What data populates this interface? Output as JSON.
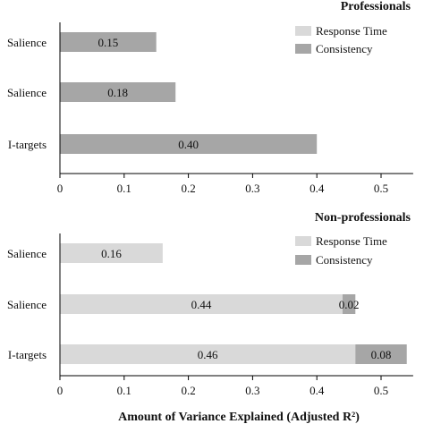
{
  "chart_data": [
    {
      "type": "bar",
      "orientation": "horizontal",
      "stacked": true,
      "title": "Professionals",
      "xlabel": "",
      "ylabel": "",
      "xlim": [
        0,
        0.55
      ],
      "x_ticks": [
        "0",
        "0.1",
        "0.2",
        "0.3",
        "0.4",
        "0.5"
      ],
      "categories": [
        "Salience",
        "Salience",
        "I-targets"
      ],
      "series": [
        {
          "name": "Response Time",
          "color": "#d9d9d9",
          "values": [
            0,
            0,
            0
          ],
          "labels": [
            "",
            "",
            ""
          ]
        },
        {
          "name": "Consistency",
          "color": "#a6a6a6",
          "values": [
            0.15,
            0.18,
            0.4
          ],
          "labels": [
            "0.15",
            "0.18",
            "0.40"
          ]
        }
      ],
      "legend": "top-right",
      "grid": false
    },
    {
      "type": "bar",
      "orientation": "horizontal",
      "stacked": true,
      "title": "Non-professionals",
      "xlabel": "Amount of Variance Explained (Adjusted R²)",
      "ylabel": "",
      "xlim": [
        0,
        0.55
      ],
      "x_ticks": [
        "0",
        "0.1",
        "0.2",
        "0.3",
        "0.4",
        "0.5"
      ],
      "categories": [
        "Salience",
        "Salience",
        "I-targets"
      ],
      "series": [
        {
          "name": "Response Time",
          "color": "#d9d9d9",
          "values": [
            0.16,
            0.44,
            0.46
          ],
          "labels": [
            "0.16",
            "0.44",
            "0.46"
          ]
        },
        {
          "name": "Consistency",
          "color": "#a6a6a6",
          "values": [
            0,
            0.02,
            0.08
          ],
          "labels": [
            "",
            "0.02",
            "0.08"
          ]
        }
      ],
      "legend": "top-right",
      "grid": false
    }
  ]
}
